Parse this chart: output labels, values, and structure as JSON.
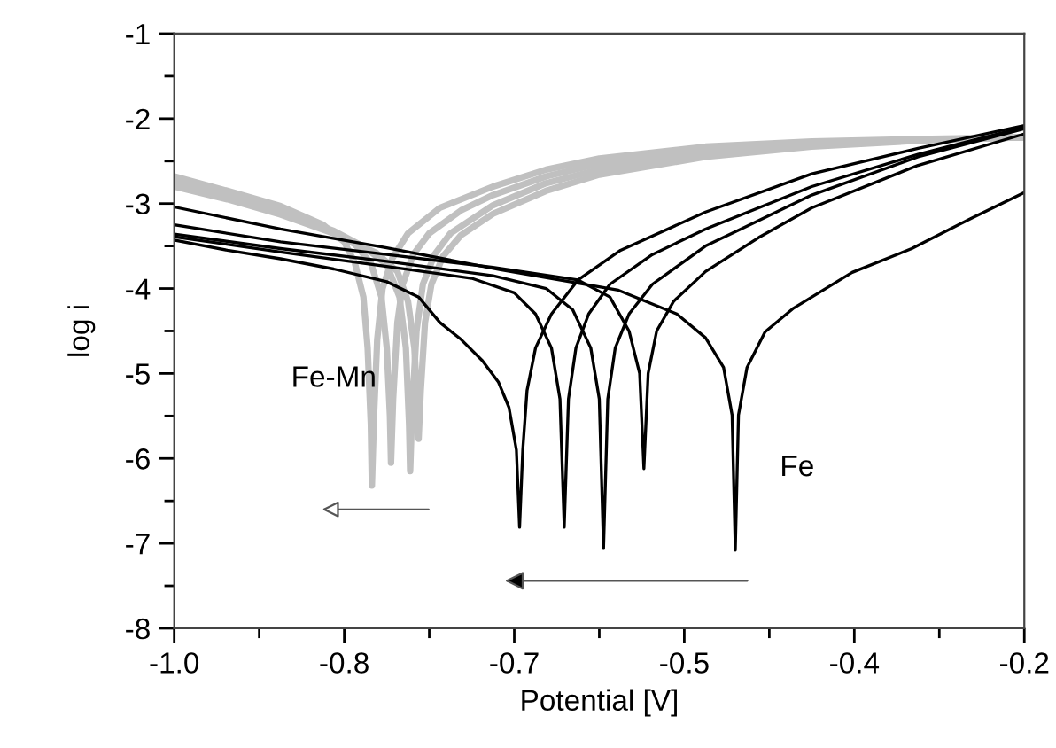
{
  "chart_data": {
    "type": "line",
    "xlabel": "Potential [V]",
    "ylabel": "log i",
    "xlim": [
      -1.0,
      -0.2
    ],
    "ylim": [
      -8,
      -1
    ],
    "xticks": [
      {
        "value": -1.0,
        "label": "-1.0"
      },
      {
        "value": -0.84,
        "label": "-0.8"
      },
      {
        "value": -0.68,
        "label": "-0.7"
      },
      {
        "value": -0.52,
        "label": "-0.5"
      },
      {
        "value": -0.36,
        "label": "-0.4"
      },
      -0.2
    ],
    "yticks": [
      -8,
      -7,
      -6,
      -5,
      -4,
      -3,
      -2,
      -1
    ],
    "grid": false,
    "legend": false,
    "marker": "none",
    "line_style": "solid",
    "annotations": [
      "Fe-Mn",
      "Fe"
    ],
    "series": [
      {
        "color": "#c0c0c0",
        "x": [
          -1.0,
          -0.95,
          -0.9,
          -0.86,
          -0.84,
          -0.83,
          -0.822,
          -0.818,
          -0.815,
          -0.814,
          -0.812,
          -0.809,
          -0.804,
          -0.795,
          -0.78,
          -0.75,
          -0.7,
          -0.65,
          -0.6,
          -0.5,
          -0.4,
          -0.3,
          -0.2
        ],
        "values": [
          -2.68,
          -2.85,
          -3.03,
          -3.25,
          -3.45,
          -3.7,
          -4.1,
          -4.7,
          -5.6,
          -6.32,
          -5.5,
          -4.6,
          -4.0,
          -3.65,
          -3.35,
          -3.05,
          -2.8,
          -2.6,
          -2.47,
          -2.33,
          -2.27,
          -2.24,
          -2.22
        ]
      },
      {
        "color": "#c0c0c0",
        "x": [
          -1.0,
          -0.95,
          -0.9,
          -0.86,
          -0.83,
          -0.815,
          -0.805,
          -0.8,
          -0.797,
          -0.796,
          -0.794,
          -0.79,
          -0.785,
          -0.775,
          -0.76,
          -0.73,
          -0.7,
          -0.65,
          -0.6,
          -0.5,
          -0.4,
          -0.3,
          -0.2
        ],
        "values": [
          -2.72,
          -2.88,
          -3.07,
          -3.27,
          -3.48,
          -3.7,
          -4.1,
          -4.7,
          -5.5,
          -6.05,
          -5.3,
          -4.4,
          -3.95,
          -3.6,
          -3.35,
          -3.08,
          -2.9,
          -2.68,
          -2.53,
          -2.36,
          -2.29,
          -2.25,
          -2.22
        ]
      },
      {
        "color": "#c0c0c0",
        "x": [
          -1.0,
          -0.95,
          -0.9,
          -0.85,
          -0.82,
          -0.8,
          -0.788,
          -0.782,
          -0.779,
          -0.778,
          -0.776,
          -0.772,
          -0.766,
          -0.755,
          -0.74,
          -0.7,
          -0.65,
          -0.6,
          -0.5,
          -0.4,
          -0.3,
          -0.2
        ],
        "values": [
          -2.76,
          -2.92,
          -3.1,
          -3.32,
          -3.52,
          -3.72,
          -4.1,
          -4.7,
          -5.6,
          -6.15,
          -5.4,
          -4.5,
          -3.95,
          -3.6,
          -3.35,
          -3.02,
          -2.76,
          -2.6,
          -2.4,
          -2.3,
          -2.25,
          -2.22
        ]
      },
      {
        "color": "#c0c0c0",
        "x": [
          -1.0,
          -0.95,
          -0.9,
          -0.85,
          -0.81,
          -0.79,
          -0.78,
          -0.774,
          -0.771,
          -0.77,
          -0.768,
          -0.764,
          -0.758,
          -0.747,
          -0.73,
          -0.7,
          -0.65,
          -0.6,
          -0.5,
          -0.4,
          -0.3,
          -0.2
        ],
        "values": [
          -2.8,
          -2.95,
          -3.13,
          -3.35,
          -3.58,
          -3.8,
          -4.15,
          -4.7,
          -5.4,
          -5.77,
          -5.2,
          -4.4,
          -3.95,
          -3.62,
          -3.37,
          -3.12,
          -2.85,
          -2.66,
          -2.45,
          -2.33,
          -2.26,
          -2.22
        ]
      },
      {
        "color": "#000000",
        "x": [
          -1.0,
          -0.95,
          -0.9,
          -0.85,
          -0.8,
          -0.77,
          -0.75,
          -0.73,
          -0.71,
          -0.695,
          -0.685,
          -0.678,
          -0.675,
          -0.672,
          -0.668,
          -0.66,
          -0.645,
          -0.62,
          -0.58,
          -0.5,
          -0.4,
          -0.3,
          -0.2
        ],
        "values": [
          -3.43,
          -3.55,
          -3.65,
          -3.77,
          -3.92,
          -4.1,
          -4.4,
          -4.6,
          -4.85,
          -5.1,
          -5.4,
          -5.9,
          -6.81,
          -5.9,
          -5.2,
          -4.7,
          -4.3,
          -3.9,
          -3.55,
          -3.1,
          -2.65,
          -2.35,
          -2.08
        ]
      },
      {
        "color": "#000000",
        "x": [
          -1.0,
          -0.9,
          -0.8,
          -0.72,
          -0.68,
          -0.66,
          -0.645,
          -0.637,
          -0.633,
          -0.629,
          -0.622,
          -0.61,
          -0.59,
          -0.55,
          -0.5,
          -0.4,
          -0.3,
          -0.2
        ],
        "values": [
          -3.39,
          -3.57,
          -3.74,
          -3.88,
          -4.05,
          -4.3,
          -4.7,
          -5.3,
          -6.81,
          -5.3,
          -4.7,
          -4.3,
          -3.95,
          -3.6,
          -3.3,
          -2.8,
          -2.42,
          -2.1
        ]
      },
      {
        "color": "#000000",
        "x": [
          -1.0,
          -0.9,
          -0.8,
          -0.7,
          -0.65,
          -0.625,
          -0.608,
          -0.6,
          -0.596,
          -0.592,
          -0.585,
          -0.572,
          -0.55,
          -0.5,
          -0.4,
          -0.3,
          -0.2
        ],
        "values": [
          -3.36,
          -3.53,
          -3.68,
          -3.85,
          -4.0,
          -4.25,
          -4.7,
          -5.3,
          -7.06,
          -5.3,
          -4.7,
          -4.3,
          -3.95,
          -3.5,
          -2.9,
          -2.45,
          -2.12
        ]
      },
      {
        "color": "#000000",
        "x": [
          -1.0,
          -0.9,
          -0.8,
          -0.7,
          -0.62,
          -0.59,
          -0.572,
          -0.562,
          -0.558,
          -0.554,
          -0.546,
          -0.53,
          -0.5,
          -0.45,
          -0.4,
          -0.3,
          -0.2
        ],
        "values": [
          -3.25,
          -3.45,
          -3.6,
          -3.75,
          -3.9,
          -4.1,
          -4.5,
          -5.0,
          -6.12,
          -5.0,
          -4.5,
          -4.15,
          -3.8,
          -3.4,
          -3.05,
          -2.55,
          -2.18
        ]
      },
      {
        "color": "#000000",
        "x": [
          -1.0,
          -0.9,
          -0.8,
          -0.693,
          -0.582,
          -0.527,
          -0.5,
          -0.483,
          -0.475,
          -0.472,
          -0.469,
          -0.461,
          -0.444,
          -0.417,
          -0.362,
          -0.306,
          -0.251,
          -0.2
        ],
        "values": [
          -3.04,
          -3.3,
          -3.52,
          -3.78,
          -4.02,
          -4.3,
          -4.58,
          -4.93,
          -5.49,
          -7.08,
          -5.49,
          -4.93,
          -4.51,
          -4.23,
          -3.81,
          -3.53,
          -3.18,
          -2.87
        ]
      }
    ]
  }
}
